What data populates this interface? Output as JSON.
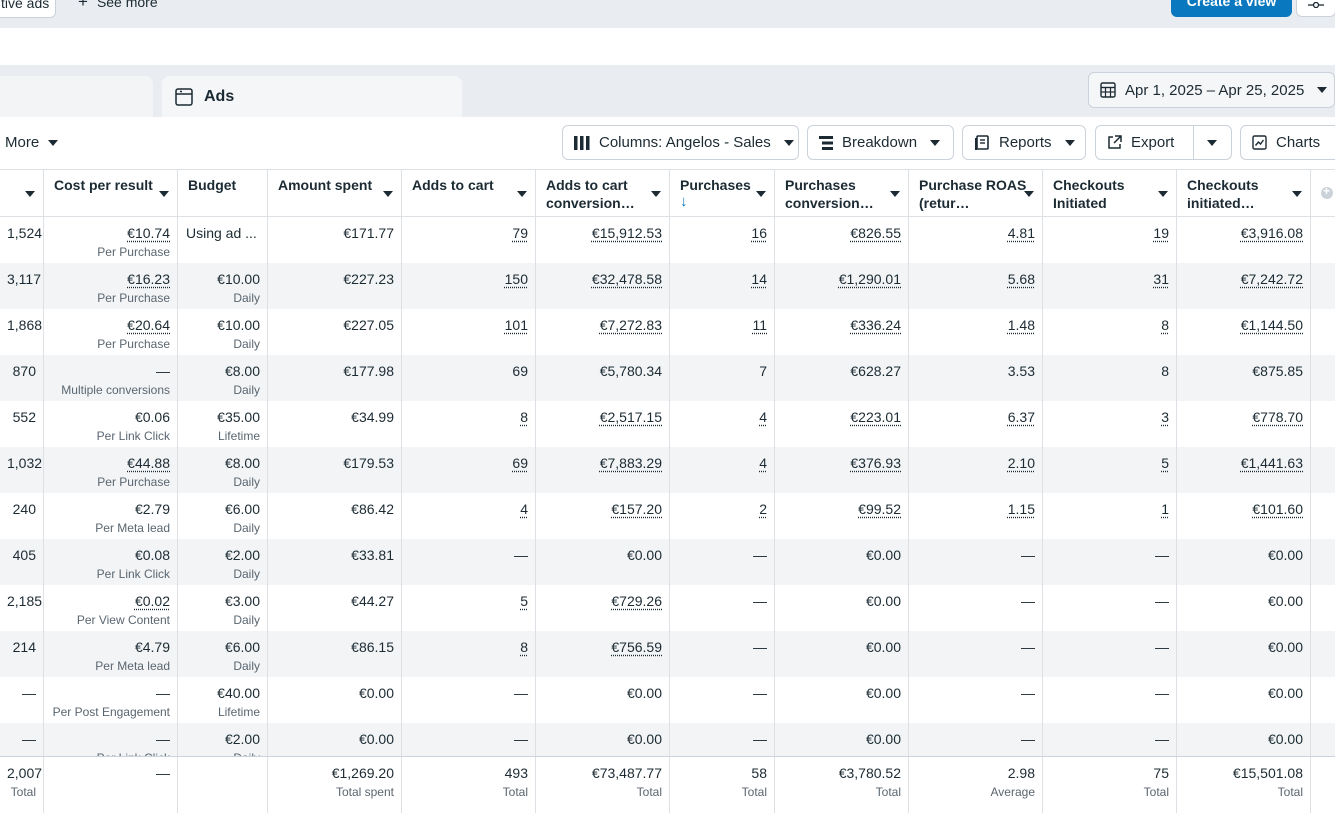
{
  "top": {
    "chip_label": "tive ads",
    "see_more": "See more",
    "create_view": "Create a view"
  },
  "tabs": {
    "ads": "Ads"
  },
  "date_range": "Apr 1, 2025 – Apr 25, 2025",
  "toolbar": {
    "more": "More",
    "columns": "Columns: Angelos - Sales",
    "breakdown": "Breakdown",
    "reports": "Reports",
    "export": "Export",
    "charts": "Charts"
  },
  "table": {
    "headers": [
      "",
      "Cost per result",
      "Budget",
      "Amount spent",
      "Adds to cart",
      "Adds to cart conversion…",
      "Purchases",
      "Purchases conversion…",
      "Purchase ROAS (retur…",
      "Checkouts Initiated",
      "Checkouts initiated…"
    ],
    "rows": [
      [
        "1,524",
        "€10.74",
        "Per Purchase",
        "Using ad ...",
        "",
        "€171.77",
        "79",
        "€15,912.53",
        "16",
        "€826.55",
        "4.81",
        "19",
        "€3,916.08"
      ],
      [
        "3,117",
        "€16.23",
        "Per Purchase",
        "€10.00",
        "Daily",
        "€227.23",
        "150",
        "€32,478.58",
        "14",
        "€1,290.01",
        "5.68",
        "31",
        "€7,242.72"
      ],
      [
        "1,868",
        "€20.64",
        "Per Purchase",
        "€10.00",
        "Daily",
        "€227.05",
        "101",
        "€7,272.83",
        "11",
        "€336.24",
        "1.48",
        "8",
        "€1,144.50"
      ],
      [
        "870",
        "—",
        "Multiple conversions",
        "€8.00",
        "Daily",
        "€177.98",
        "69",
        "€5,780.34",
        "7",
        "€628.27",
        "3.53",
        "8",
        "€875.85"
      ],
      [
        "552",
        "€0.06",
        "Per Link Click",
        "€35.00",
        "Lifetime",
        "€34.99",
        "8",
        "€2,517.15",
        "4",
        "€223.01",
        "6.37",
        "3",
        "€778.70"
      ],
      [
        "1,032",
        "€44.88",
        "Per Purchase",
        "€8.00",
        "Daily",
        "€179.53",
        "69",
        "€7,883.29",
        "4",
        "€376.93",
        "2.10",
        "5",
        "€1,441.63"
      ],
      [
        "240",
        "€2.79",
        "Per Meta lead",
        "€6.00",
        "Daily",
        "€86.42",
        "4",
        "€157.20",
        "2",
        "€99.52",
        "1.15",
        "1",
        "€101.60"
      ],
      [
        "405",
        "€0.08",
        "Per Link Click",
        "€2.00",
        "Daily",
        "€33.81",
        "—",
        "€0.00",
        "—",
        "€0.00",
        "—",
        "—",
        "€0.00"
      ],
      [
        "2,185",
        "€0.02",
        "Per View Content",
        "€3.00",
        "Daily",
        "€44.27",
        "5",
        "€729.26",
        "—",
        "€0.00",
        "—",
        "—",
        "€0.00"
      ],
      [
        "214",
        "€4.79",
        "Per Meta lead",
        "€6.00",
        "Daily",
        "€86.15",
        "8",
        "€756.59",
        "—",
        "€0.00",
        "—",
        "—",
        "€0.00"
      ],
      [
        "—",
        "—",
        "Per Post Engagement",
        "€40.00",
        "Lifetime",
        "€0.00",
        "—",
        "€0.00",
        "—",
        "€0.00",
        "—",
        "—",
        "€0.00"
      ],
      [
        "—",
        "—",
        "Per Link Click",
        "€2.00",
        "Daily",
        "€0.00",
        "—",
        "€0.00",
        "—",
        "€0.00",
        "—",
        "—",
        "€0.00"
      ]
    ],
    "totals": [
      [
        "2,007",
        "Total"
      ],
      [
        "—",
        ""
      ],
      [
        "",
        ""
      ],
      [
        "€1,269.20",
        "Total spent"
      ],
      [
        "493",
        "Total"
      ],
      [
        "€73,487.77",
        "Total"
      ],
      [
        "58",
        "Total"
      ],
      [
        "€3,780.52",
        "Total"
      ],
      [
        "2.98",
        "Average"
      ],
      [
        "75",
        "Total"
      ],
      [
        "€15,501.08",
        "Total"
      ]
    ]
  }
}
